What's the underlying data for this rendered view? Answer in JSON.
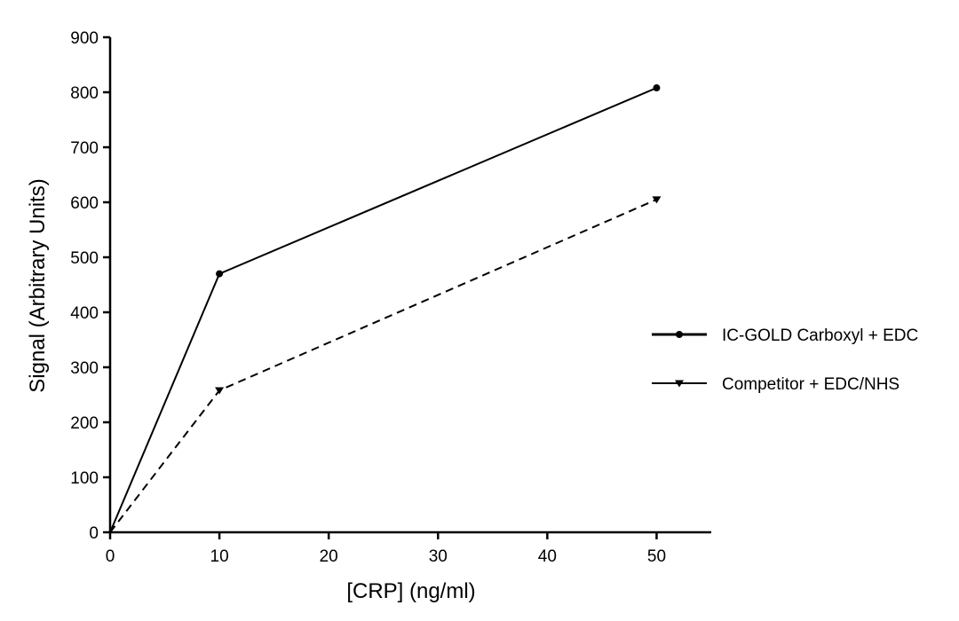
{
  "chart_data": {
    "type": "line",
    "xlabel": "[CRP] (ng/ml)",
    "ylabel": "Signal (Arbitrary Units)",
    "xlim": [
      0,
      55
    ],
    "ylim": [
      0,
      900
    ],
    "xticks": [
      0,
      10,
      20,
      30,
      40,
      50
    ],
    "yticks": [
      0,
      100,
      200,
      300,
      400,
      500,
      600,
      700,
      800,
      900
    ],
    "xtick_labels": [
      "0",
      "10",
      "20",
      "30",
      "40",
      "50"
    ],
    "ytick_labels": [
      "0",
      "100",
      "200",
      "300",
      "400",
      "500",
      "600",
      "700",
      "800",
      "900"
    ],
    "grid": false,
    "legend": "right",
    "series": [
      {
        "name": "IC-GOLD Carboxyl + EDC",
        "x": [
          0,
          10,
          50
        ],
        "values": [
          0,
          470,
          808
        ],
        "color": "#000000",
        "line_style": "solid",
        "marker": "circle"
      },
      {
        "name": "Competitor + EDC/NHS",
        "x": [
          0,
          10,
          50
        ],
        "values": [
          0,
          258,
          605
        ],
        "color": "#000000",
        "line_style": "dashed",
        "marker": "triangle-down"
      }
    ]
  }
}
